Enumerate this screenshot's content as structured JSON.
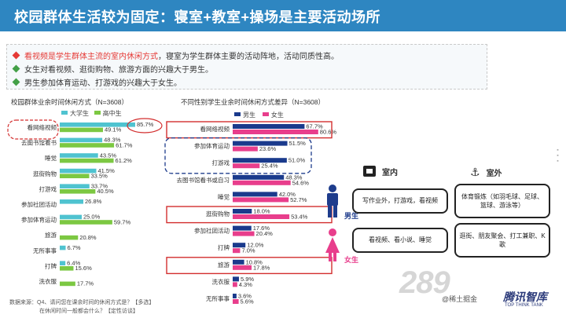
{
  "title": "校园群体生活较为固定：寝室+教室+操场是主要活动场所",
  "bullets": [
    {
      "highlight": "看视频是学生群体主流的室内休闲方式",
      "rest": "，寝室为学生群体主要的活动阵地，活动同质性高。",
      "marker_color": "#e53935"
    },
    {
      "highlight": "",
      "rest": "女生对看视频、逛街购物、旅游方面的兴趣大于男生。",
      "marker_color": "#43a047"
    },
    {
      "highlight": "",
      "rest": "男生参加体育运动、打游戏的兴趣大于女生。",
      "marker_color": "#43a047"
    }
  ],
  "chart_data": [
    {
      "type": "bar",
      "title": "校园群体业余时间休闲方式（N=3608）",
      "categories": [
        "看网络视频",
        "去图书馆看书",
        "睡觉",
        "逛街购物",
        "打游戏",
        "参加社团活动",
        "参加体育运动",
        "旅游",
        "无所事事",
        "打牌",
        "洗衣服"
      ],
      "series": [
        {
          "name": "大学生",
          "color": "#4fc3d0",
          "values": [
            85.7,
            48.3,
            43.5,
            41.5,
            33.7,
            26.8,
            25.0,
            null,
            6.7,
            6.4,
            null
          ]
        },
        {
          "name": "高中生",
          "color": "#7cc842",
          "values": [
            49.1,
            61.7,
            61.2,
            33.5,
            40.5,
            null,
            59.7,
            20.8,
            null,
            15.6,
            17.7
          ]
        }
      ],
      "labels_text": [
        "85.7%",
        "49.1%",
        "48.3%",
        "61.7%",
        "43.5%",
        "61.2%",
        "41.5%",
        "33.5%",
        "33.7%",
        "40.5%",
        "26.8%",
        "25.0%",
        "59.7%",
        "20.8%",
        "6.7%",
        "6.4%",
        "15.6%",
        "17.7%"
      ]
    },
    {
      "type": "bar",
      "title": "不同性别学生业余时间休闲方式差异（N=3608）",
      "categories": [
        "看网络视频",
        "参加体育运动",
        "打游戏",
        "去图书馆看书或自习",
        "睡觉",
        "逛街购物",
        "参加社团活动",
        "打牌",
        "旅游",
        "洗衣服",
        "无所事事"
      ],
      "series": [
        {
          "name": "男生",
          "color": "#1a3a8c",
          "values": [
            67.7,
            51.5,
            51.0,
            48.3,
            42.0,
            18.0,
            17.6,
            12.0,
            10.8,
            5.9,
            3.6
          ]
        },
        {
          "name": "女生",
          "color": "#e83e8c",
          "values": [
            80.6,
            23.6,
            25.4,
            54.6,
            52.7,
            53.4,
            20.4,
            7.0,
            17.8,
            4.3,
            5.6
          ]
        }
      ],
      "labels_text": [
        "67.7%",
        "80.6%",
        "51.5%",
        "23.6%",
        "51.0%",
        "25.4%",
        "48.3%",
        "54.6%",
        "42.0%",
        "52.7%",
        "18.0%",
        "53.4%",
        "17.6%",
        "20.4%",
        "12.0%",
        "7.0%",
        "10.8%",
        "17.8%",
        "5.9%",
        "4.3%",
        "3.6%",
        "5.6%"
      ]
    }
  ],
  "note_lines": [
    "数据来源：Q4、请问您在课余时间的休闲方式是？【多选】",
    "在休闲时间一般都会什么？【定性访谈】"
  ],
  "panel": {
    "indoor_label": "室内",
    "outdoor_label": "室外",
    "male_label": "男生",
    "female_label": "女生",
    "male_indoor": "写作业外，打游戏，看视频",
    "male_outdoor": "体育锻炼（如羽毛球、足球、篮球、游泳等）",
    "female_indoor": "看视频、看小说、睡觉",
    "female_outdoor": "逛街、朋友聚会、打工兼职、K歌"
  },
  "watermark": {
    "site": "289",
    "user": "@稀土掘金",
    "brand": "腾讯智库",
    "brand_sub": "TOP THINK TANK"
  },
  "colors": {
    "title_bg": "#2e86c1",
    "highlight_box": "#d32f2f",
    "dashed_blue": "#1e3c8c"
  }
}
